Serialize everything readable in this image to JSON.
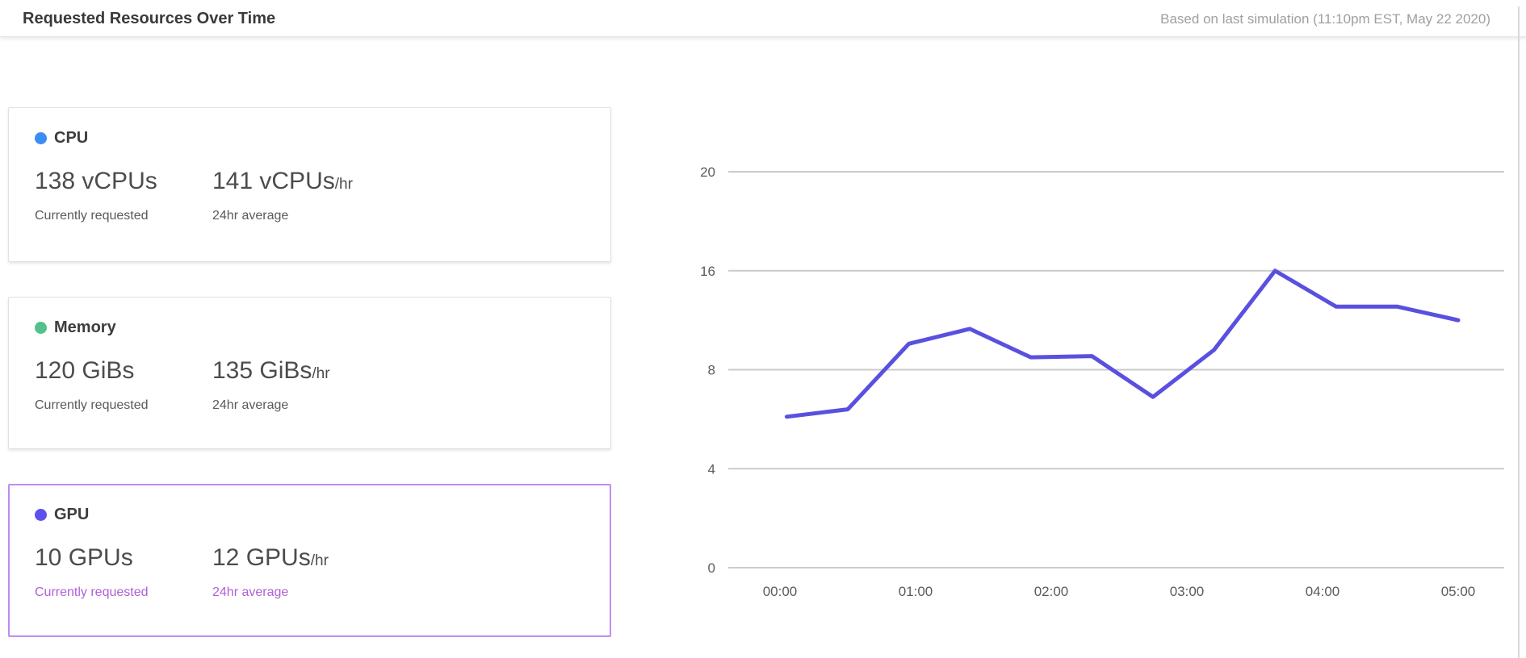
{
  "header": {
    "title": "Requested Resources Over Time",
    "subtitle": "Based on last simulation (11:10pm EST, May 22 2020)"
  },
  "colors": {
    "accent_line": "#5a50e0",
    "cpu_dot": "#3b8df2",
    "memory_dot": "#52c18b",
    "gpu_dot": "#5d51ee",
    "selected_card_border": "#c18cf0",
    "selected_caption_text": "#b060d6"
  },
  "cards": [
    {
      "label": "CPU",
      "dot_color": "#3b8df2",
      "current_value": "138 vCPUs",
      "current_suffix": "",
      "current_caption": "Currently requested",
      "average_value": "141 vCPUs",
      "average_suffix": "/hr",
      "average_caption": "24hr average",
      "selected": false
    },
    {
      "label": "Memory",
      "dot_color": "#52c18b",
      "current_value": "120 GiBs",
      "current_suffix": "",
      "current_caption": "Currently requested",
      "average_value": "135 GiBs",
      "average_suffix": "/hr",
      "average_caption": "24hr average",
      "selected": false
    },
    {
      "label": "GPU",
      "dot_color": "#5d51ee",
      "current_value": "10 GPUs",
      "current_suffix": "",
      "current_caption": "Currently requested",
      "average_value": "12 GPUs",
      "average_suffix": "/hr",
      "average_caption": "24hr average",
      "selected": true,
      "border_color": "#c18cf0",
      "caption_color": "#b060d6"
    }
  ],
  "chart_data": {
    "type": "line",
    "title": "",
    "xlabel": "",
    "ylabel": "",
    "grid": true,
    "legend": "none",
    "x_tick_labels": [
      "00:00",
      "01:00",
      "02:00",
      "03:00",
      "04:00",
      "05:00"
    ],
    "y_tick_labels": [
      "20",
      "16",
      "8",
      "4",
      "0"
    ],
    "axis_color": "#5b5b5b",
    "gridline_color": "#cbcbcb",
    "series": [
      {
        "name": "GPU requested",
        "color": "#5a50e0",
        "x_hours": [
          0.05,
          0.5,
          0.95,
          1.4,
          1.85,
          2.3,
          2.75,
          3.2,
          3.65,
          4.1,
          4.55,
          5.0
        ],
        "values": [
          6.1,
          6.4,
          10.1,
          11.3,
          9.0,
          9.1,
          6.9,
          9.6,
          16.0,
          13.1,
          13.1,
          12.0
        ]
      }
    ]
  }
}
